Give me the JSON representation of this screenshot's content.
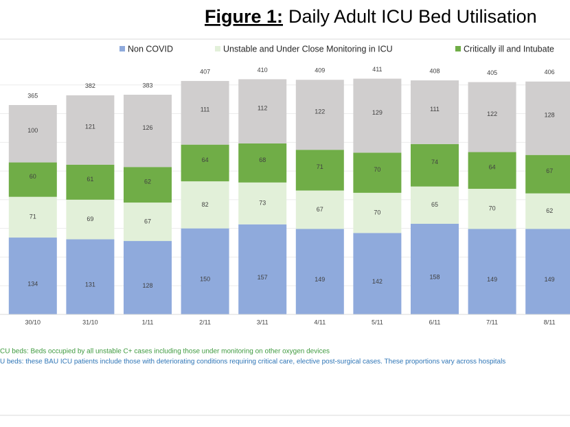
{
  "chart_data": {
    "type": "stacked_bar",
    "title_label": "Figure 1:",
    "title": "Daily Adult ICU Bed Utilisation",
    "categories": [
      "30/10",
      "31/10",
      "1/11",
      "2/11",
      "3/11",
      "4/11",
      "5/11",
      "6/11",
      "7/11",
      "8/11"
    ],
    "series": [
      {
        "name": "Non COVID",
        "color": "#8faadc",
        "values": [
          134,
          131,
          128,
          150,
          157,
          149,
          142,
          158,
          149,
          149
        ]
      },
      {
        "name": "Unstable and Under Close Monitoring in ICU",
        "color": "#e2f0d9",
        "values": [
          71,
          69,
          67,
          82,
          73,
          67,
          70,
          65,
          70,
          62
        ]
      },
      {
        "name": "Critically ill and Intubate",
        "color": "#70ad47",
        "values": [
          60,
          61,
          62,
          64,
          68,
          71,
          70,
          74,
          64,
          67
        ]
      },
      {
        "color": "#d0cece",
        "values": [
          100,
          121,
          126,
          111,
          112,
          122,
          129,
          111,
          122,
          128
        ]
      }
    ],
    "totals": [
      365,
      382,
      383,
      407,
      410,
      409,
      411,
      408,
      405,
      406
    ],
    "ylim": [
      0,
      450
    ],
    "yticks": [
      0,
      50,
      100,
      150,
      200,
      250,
      300,
      350,
      400
    ],
    "ytick_labels": false,
    "grid": true,
    "notes": [
      {
        "text": "CU beds: Beds occupied by all unstable C+ cases including those under monitoring on other oxygen devices",
        "color": "#3f9a3f"
      },
      {
        "text": "U beds: these BAU ICU patients include those with deteriorating conditions requiring critical care, elective post-surgical cases. These proportions vary across hospitals",
        "color": "#2e75b6"
      }
    ]
  }
}
